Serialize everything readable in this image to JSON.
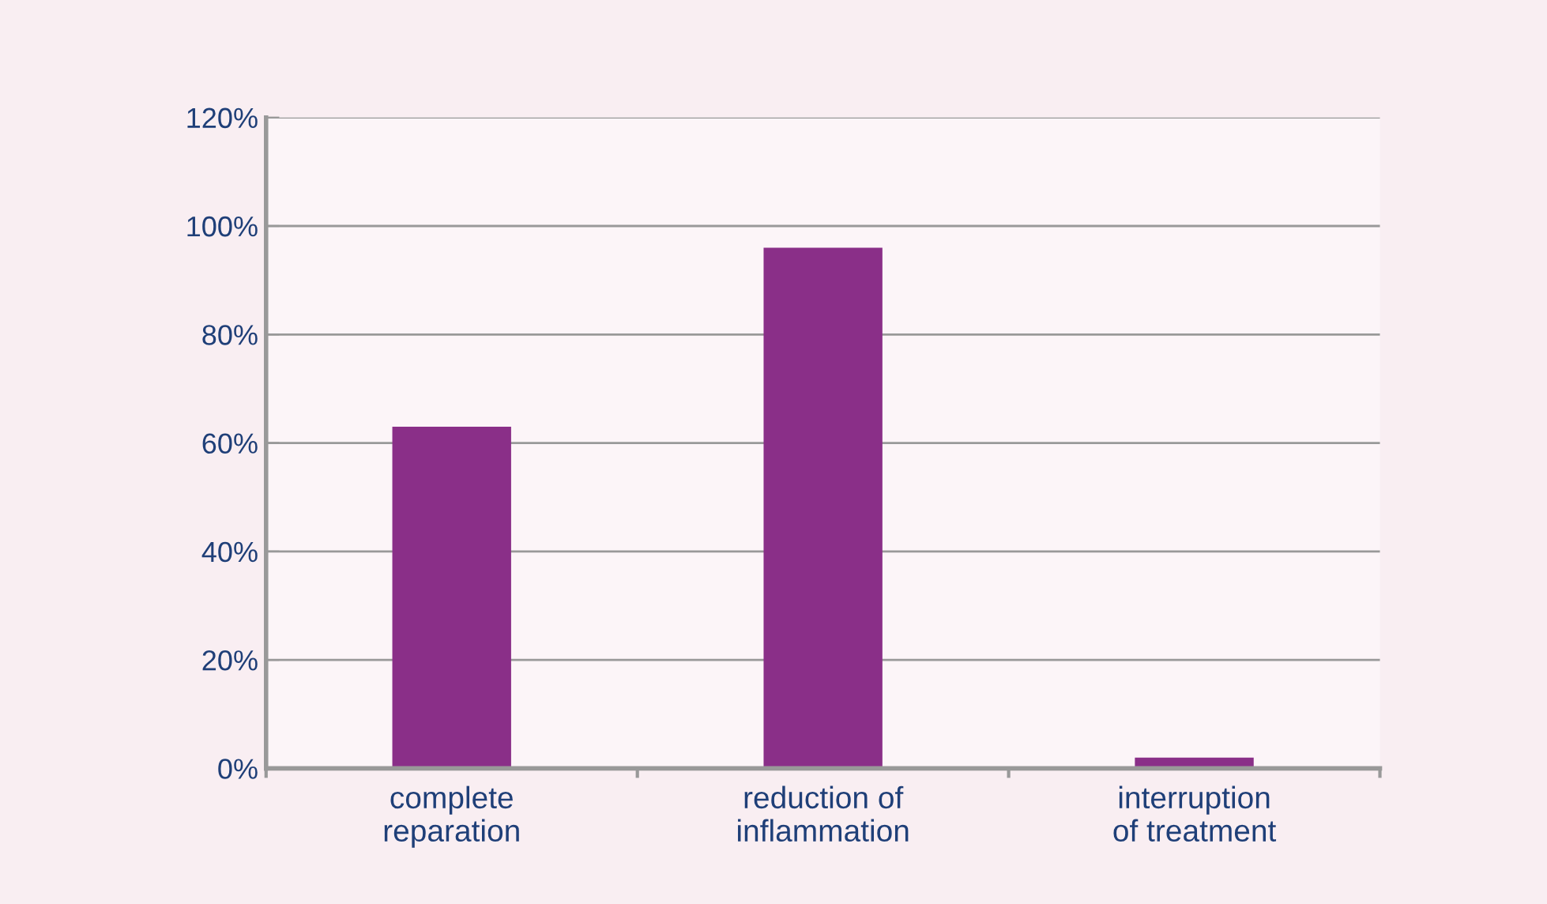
{
  "chart_data": {
    "type": "bar",
    "categories": [
      "complete\nreparation",
      "reduction of\ninflammation",
      "interruption\nof treatment"
    ],
    "values": [
      63,
      96,
      2
    ],
    "color": "#8a2f88",
    "ylim": [
      0,
      120
    ],
    "yticks": [
      {
        "value": 0,
        "label": "0%"
      },
      {
        "value": 20,
        "label": "20%"
      },
      {
        "value": 40,
        "label": "40%"
      },
      {
        "value": 60,
        "label": "60%"
      },
      {
        "value": 80,
        "label": "80%"
      },
      {
        "value": 100,
        "label": "100%"
      },
      {
        "value": 120,
        "label": "120%"
      }
    ],
    "grid": "y"
  }
}
